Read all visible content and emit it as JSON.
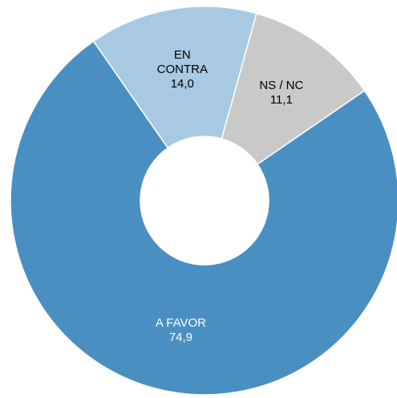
{
  "chart_data": {
    "type": "donut",
    "categories": [
      "A FAVOR",
      "EN CONTRA",
      "NS / NC"
    ],
    "values": [
      74.9,
      14.0,
      11.1
    ],
    "value_labels": [
      "74,9",
      "14,0",
      "11,1"
    ],
    "colors": [
      "#4a8fc2",
      "#a7c9e2",
      "#c9c9c9"
    ]
  }
}
